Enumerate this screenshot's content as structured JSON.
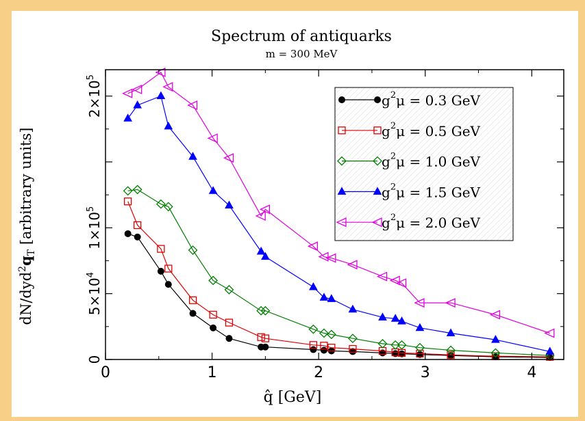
{
  "chart_data": {
    "type": "line",
    "title": "Spectrum of antiquarks",
    "subtitle": "m = 300 MeV",
    "xlabel": "q̂ [GeV]",
    "ylabel_parts": {
      "prefix": "dN/dyd",
      "sup": "2",
      "bold": "q",
      "sub": "T",
      "suffix": " [arbitrary units]"
    },
    "xlim": [
      0,
      4.3
    ],
    "ylim": [
      0,
      220000
    ],
    "x_ticks": [
      {
        "value": 0,
        "label": "0"
      },
      {
        "value": 1,
        "label": "1"
      },
      {
        "value": 2,
        "label": "2"
      },
      {
        "value": 3,
        "label": "3"
      },
      {
        "value": 4,
        "label": "4"
      }
    ],
    "y_ticks": [
      {
        "value": 0,
        "mant": "0",
        "exp": ""
      },
      {
        "value": 50000,
        "mant": "5×10",
        "exp": "4"
      },
      {
        "value": 100000,
        "mant": "1×10",
        "exp": "5"
      },
      {
        "value": 150000,
        "mant": "",
        "exp": ""
      },
      {
        "value": 200000,
        "mant": "2×10",
        "exp": "5"
      }
    ],
    "grid": false,
    "legend_position": "top-right",
    "series": [
      {
        "name": "g²μ = 0.3 GeV",
        "legend_prefix": "g",
        "legend_sup": "2",
        "legend_suffix": "μ = 0.3 GeV",
        "color": "#000000",
        "marker": "circle-filled",
        "x": [
          0.21,
          0.3,
          0.52,
          0.59,
          0.82,
          1.01,
          1.16,
          1.46,
          1.5,
          1.95,
          2.05,
          2.12,
          2.32,
          2.6,
          2.72,
          2.78,
          2.95,
          3.24,
          3.66,
          4.17
        ],
        "y": [
          95500,
          93000,
          67000,
          57000,
          35000,
          24000,
          16000,
          9500,
          9500,
          7500,
          7000,
          6500,
          6000,
          5000,
          4500,
          4300,
          3800,
          3000,
          2000,
          1500
        ]
      },
      {
        "name": "g²μ = 0.5 GeV",
        "legend_prefix": "g",
        "legend_sup": "2",
        "legend_suffix": "μ = 0.5 GeV",
        "color": "#e00000",
        "marker": "square-open",
        "x": [
          0.21,
          0.3,
          0.52,
          0.59,
          0.82,
          1.01,
          1.16,
          1.46,
          1.5,
          1.95,
          2.05,
          2.12,
          2.32,
          2.6,
          2.72,
          2.78,
          2.95,
          3.24,
          3.66,
          4.17
        ],
        "y": [
          120000,
          102000,
          84000,
          69000,
          45000,
          34000,
          28000,
          17000,
          16000,
          11000,
          10500,
          9000,
          8000,
          6500,
          5500,
          5000,
          4500,
          3500,
          2500,
          2000
        ]
      },
      {
        "name": "g²μ = 1.0 GeV",
        "legend_prefix": "g",
        "legend_sup": "2",
        "legend_suffix": "μ = 1.0 GeV",
        "color": "#008000",
        "marker": "diamond-open",
        "x": [
          0.21,
          0.3,
          0.52,
          0.59,
          0.82,
          1.01,
          1.16,
          1.46,
          1.5,
          1.95,
          2.05,
          2.12,
          2.32,
          2.6,
          2.72,
          2.78,
          2.95,
          3.24,
          3.66,
          4.17
        ],
        "y": [
          128000,
          129000,
          118000,
          116000,
          83000,
          60000,
          53000,
          37000,
          37000,
          23000,
          20000,
          19000,
          16000,
          12000,
          11000,
          11000,
          9000,
          7000,
          5000,
          3000
        ]
      },
      {
        "name": "g²μ = 1.5 GeV",
        "legend_prefix": "g",
        "legend_sup": "2",
        "legend_suffix": "μ = 1.5 GeV",
        "color": "#0000ff",
        "marker": "triangle-up-filled",
        "x": [
          0.21,
          0.3,
          0.52,
          0.59,
          0.82,
          1.01,
          1.16,
          1.46,
          1.5,
          1.95,
          2.05,
          2.12,
          2.32,
          2.6,
          2.72,
          2.78,
          2.95,
          3.24,
          3.66,
          4.17
        ],
        "y": [
          183000,
          193000,
          200000,
          177000,
          154000,
          128000,
          117000,
          82000,
          78000,
          55000,
          47000,
          46000,
          38000,
          32000,
          31000,
          29000,
          24000,
          20000,
          15000,
          6000
        ]
      },
      {
        "name": "g²μ = 2.0 GeV",
        "legend_prefix": "g",
        "legend_sup": "2",
        "legend_suffix": "μ = 2.0 GeV",
        "color": "#e000e0",
        "marker": "triangle-left-open",
        "x": [
          0.21,
          0.3,
          0.52,
          0.59,
          0.82,
          1.01,
          1.16,
          1.46,
          1.5,
          1.95,
          2.05,
          2.12,
          2.32,
          2.6,
          2.72,
          2.78,
          2.95,
          3.24,
          3.66,
          4.17
        ],
        "y": [
          202000,
          205000,
          218000,
          207000,
          193000,
          168000,
          153000,
          109000,
          114000,
          86000,
          78000,
          77000,
          72000,
          63000,
          60000,
          58000,
          43000,
          43000,
          34000,
          20000
        ]
      }
    ]
  }
}
